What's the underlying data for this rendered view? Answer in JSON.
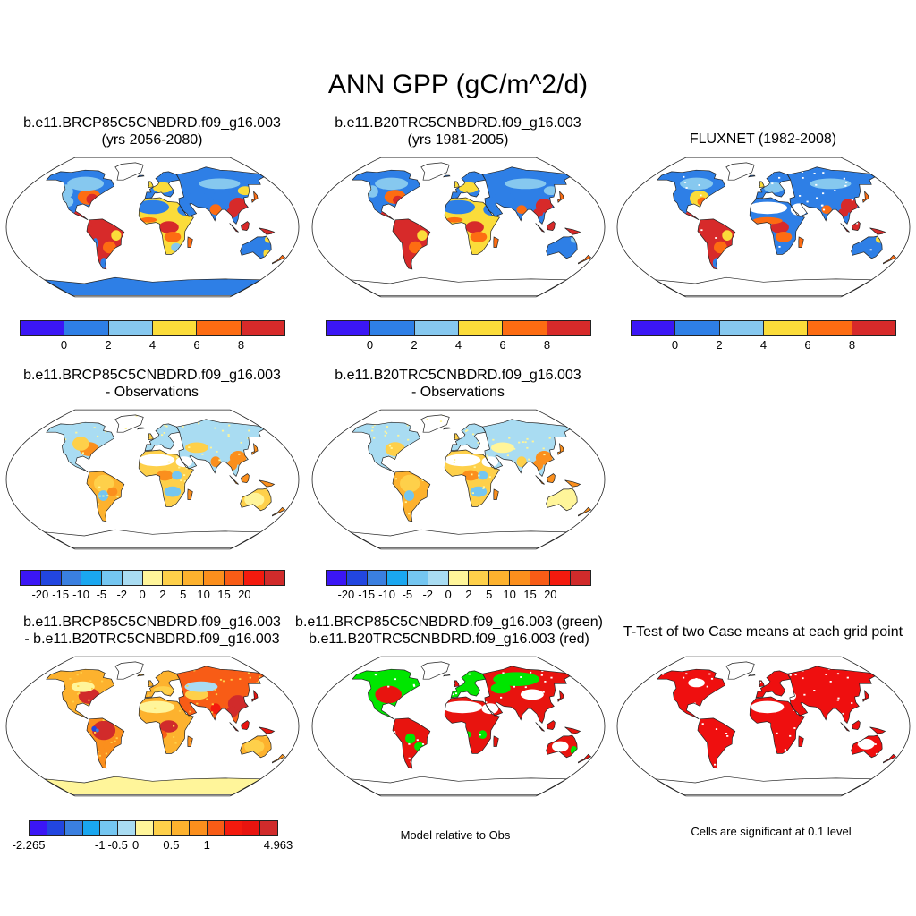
{
  "figure": {
    "title": "ANN GPP (gC/m^2/d)"
  },
  "panels": [
    {
      "id": "p1",
      "title1": "b.e11.BRCP85C5CNBDRD.f09_g16.003",
      "title2": "(yrs 2056-2080)",
      "map": "gpp_future"
    },
    {
      "id": "p2",
      "title1": "b.e11.B20TRC5CNBDRD.f09_g16.003",
      "title2": "(yrs 1981-2005)",
      "map": "gpp_present"
    },
    {
      "id": "p3",
      "title1": "FLUXNET (1982-2008)",
      "title2": "",
      "map": "gpp_obs"
    },
    {
      "id": "p4",
      "title1": "b.e11.BRCP85C5CNBDRD.f09_g16.003",
      "title2": "- Observations",
      "map": "bias_future"
    },
    {
      "id": "p5",
      "title1": "b.e11.B20TRC5CNBDRD.f09_g16.003",
      "title2": "- Observations",
      "map": "bias_present"
    },
    {
      "id": "p7",
      "title1": "b.e11.BRCP85C5CNBDRD.f09_g16.003",
      "title2": "- b.e11.B20TRC5CNBDRD.f09_g16.003",
      "map": "diff"
    },
    {
      "id": "p8",
      "title1": "b.e11.BRCP85C5CNBDRD.f09_g16.003 (green)",
      "title2": "b.e11.B20TRC5CNBDRD.f09_g16.003 (red)",
      "map": "model_vs_obs"
    },
    {
      "id": "p9",
      "title1": "T-Test of two Case means at each grid point",
      "title2": "",
      "map": "ttest"
    }
  ],
  "legends": {
    "gpp": {
      "colors": [
        "#3b16f5",
        "#2e7fe6",
        "#86c8ef",
        "#fbdc3a",
        "#fd6c12",
        "#d72a2a"
      ],
      "labels": [
        "0",
        "2",
        "4",
        "6",
        "8"
      ]
    },
    "bias": {
      "colors": [
        "#3b16f5",
        "#2246e0",
        "#3a7fe0",
        "#1aa7f0",
        "#74c6f1",
        "#a9dcf2",
        "#fff59a",
        "#fed04a",
        "#fdb22e",
        "#fb8f1d",
        "#f85c16",
        "#f41a0e",
        "#d12b2b"
      ],
      "labels": [
        "-20",
        "-15",
        "-10",
        "-5",
        "-2",
        "0",
        "2",
        "5",
        "10",
        "15",
        "20"
      ]
    },
    "diff": {
      "colors": [
        "#3b16f5",
        "#2246e0",
        "#3a7fe0",
        "#1aa7f0",
        "#74c6f1",
        "#a9dcf2",
        "#fff59a",
        "#fed04a",
        "#fdb22e",
        "#fb8f1d",
        "#f85c16",
        "#f41a0e",
        "#e8140f",
        "#d12b2b"
      ],
      "labels": [
        "-2.265",
        "-1",
        "-0.5",
        "0",
        "0.5",
        "1",
        "4.963"
      ]
    }
  },
  "notes": {
    "model_vs_obs": "Model relative to Obs",
    "ttest": "Cells are significant at 0.1 level"
  }
}
